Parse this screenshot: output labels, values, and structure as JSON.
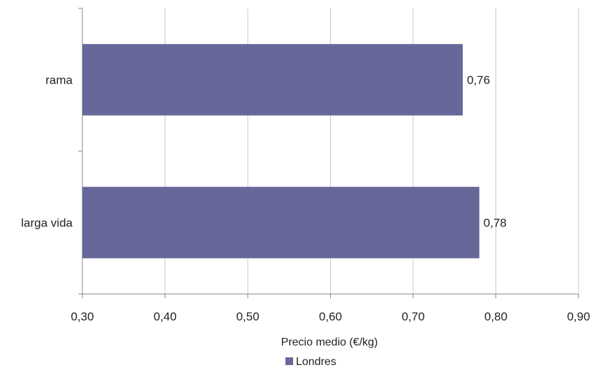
{
  "chart_data": {
    "type": "bar",
    "orientation": "horizontal",
    "categories": [
      "rama",
      "larga vida"
    ],
    "series": [
      {
        "name": "Londres",
        "values": [
          0.76,
          0.78
        ],
        "color": "#67679A"
      }
    ],
    "data_labels": [
      "0,76",
      "0,78"
    ],
    "xlim": [
      0.3,
      0.9
    ],
    "x_ticks": [
      0.3,
      0.4,
      0.5,
      0.6,
      0.7,
      0.8,
      0.9
    ],
    "x_tick_labels": [
      "0,30",
      "0,40",
      "0,50",
      "0,60",
      "0,70",
      "0,80",
      "0,90"
    ],
    "xlabel": "Precio medio (€/kg)",
    "ylabel": "",
    "title": "",
    "grid": {
      "vertical": true,
      "horizontal": false
    },
    "legend_position": "bottom",
    "gridline_color": "#C8C8C8",
    "axis_color": "#868686"
  }
}
